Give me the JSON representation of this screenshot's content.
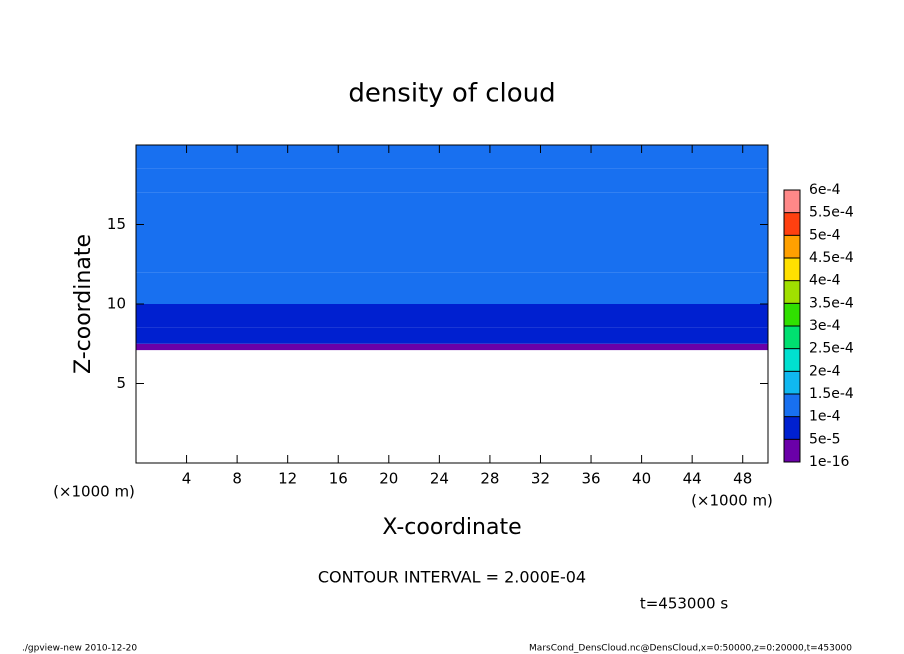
{
  "chart_data": {
    "type": "contour",
    "title": "density of cloud",
    "x_label": "X-coordinate",
    "y_label": "Z-coordinate",
    "x_unit": "(×1000 m)",
    "y_unit": "(×1000 m)",
    "contour_note": "CONTOUR INTERVAL = 2.000E-04",
    "time_note": "t=453000 s",
    "footer_left": "./gpview-new  2010-12-20",
    "footer_right": "MarsCond_DensCloud.nc@DensCloud,x=0:50000,z=0:20000,t=453000",
    "xlim": [
      0,
      50
    ],
    "xticks": [
      4,
      8,
      12,
      16,
      20,
      24,
      28,
      32,
      36,
      40,
      44,
      48
    ],
    "ylim": [
      0,
      20
    ],
    "yticks": [
      5,
      10,
      15
    ],
    "field": {
      "z_edges": [
        7.1,
        7.5,
        8.5,
        10,
        12,
        17,
        18.5,
        20
      ],
      "values": [
        3e-05,
        6e-05,
        8e-05,
        0.00011,
        0.00013,
        0.00011,
        0.0001
      ]
    },
    "levels": [
      1e-16,
      {
        "value": 5e-05,
        "label": "5e-5"
      },
      {
        "value": 0.0001,
        "label": "1e-4"
      },
      {
        "value": 0.00015,
        "label": "1.5e-4"
      },
      {
        "value": 0.0002,
        "label": "2e-4"
      },
      {
        "value": 0.00025,
        "label": "2.5e-4"
      },
      {
        "value": 0.0003,
        "label": "3e-4"
      },
      {
        "value": 0.00035,
        "label": "3.5e-4"
      },
      {
        "value": 0.0004,
        "label": "4e-4"
      },
      {
        "value": 0.00045,
        "label": "4.5e-4"
      },
      {
        "value": 0.0005,
        "label": "5e-4"
      },
      {
        "value": 0.00055,
        "label": "5.5e-4"
      },
      {
        "value": 0.0006,
        "label": "6e-4"
      }
    ],
    "colors": [
      "#6a00a8",
      "#0020d0",
      "#1870f0",
      "#10b8f0",
      "#00e0d0",
      "#00e070",
      "#30e000",
      "#a0e000",
      "#ffe000",
      "#ffa000",
      "#ff4010",
      "#ff8888"
    ]
  }
}
